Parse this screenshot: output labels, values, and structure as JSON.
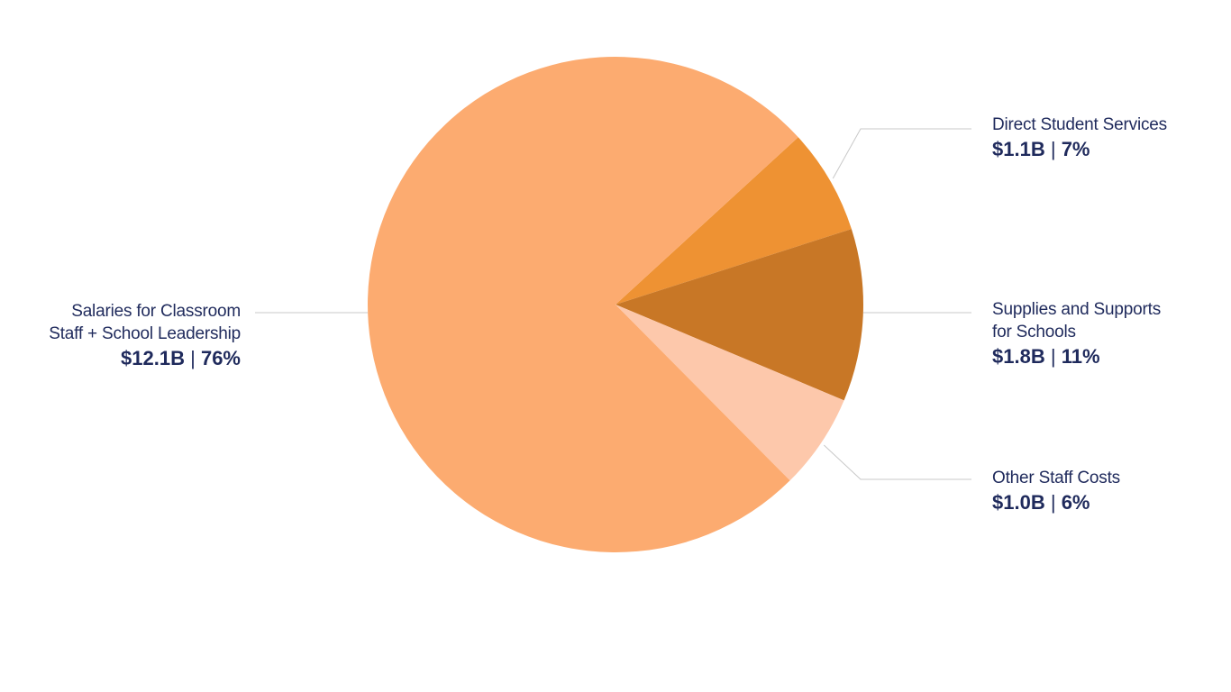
{
  "chart_data": {
    "type": "pie",
    "slices": [
      {
        "key": "direct",
        "name": "Direct Student Services",
        "name_lines": [
          "Direct Student Services"
        ],
        "amount": 1.1,
        "amount_label": "$1.1B",
        "percent": 7,
        "percent_label": "7%",
        "color": "#ee9233"
      },
      {
        "key": "supplies",
        "name": "Supplies and Supports for Schools",
        "name_lines": [
          "Supplies and Supports",
          "for Schools"
        ],
        "amount": 1.8,
        "amount_label": "$1.8B",
        "percent": 11,
        "percent_label": "11%",
        "color": "#c87726"
      },
      {
        "key": "other",
        "name": "Other Staff Costs",
        "name_lines": [
          "Other Staff Costs"
        ],
        "amount": 1.0,
        "amount_label": "$1.0B",
        "percent": 6,
        "percent_label": "6%",
        "color": "#fdc8ab"
      },
      {
        "key": "salaries",
        "name": "Salaries for Classroom Staff + School Leadership",
        "name_lines": [
          "Salaries for Classroom",
          "Staff + School Leadership"
        ],
        "amount": 12.1,
        "amount_label": "$12.1B",
        "percent": 76,
        "percent_label": "76%",
        "color": "#fcab70"
      }
    ],
    "separator": "|",
    "leader_line_color": "#c8c8c8",
    "text_color": "#1f2a5c"
  }
}
